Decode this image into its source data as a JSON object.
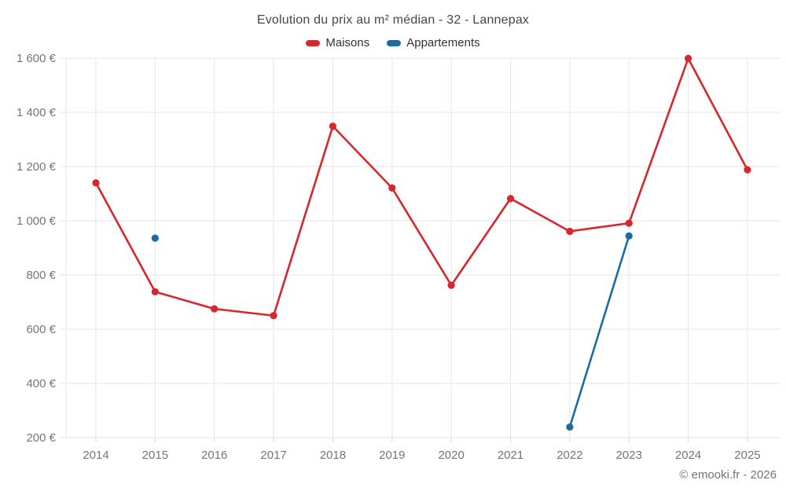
{
  "header": {
    "title": "Evolution du prix au m² médian - 32 - Lannepax"
  },
  "legend": {
    "items": [
      {
        "label": "Maisons",
        "color": "#d8262d"
      },
      {
        "label": "Appartements",
        "color": "#1a6da1"
      }
    ]
  },
  "footer": {
    "credit": "© emooki.fr - 2026"
  },
  "colors": {
    "gridline": "#e6e6e6",
    "tick": "#d8d8d8",
    "axis_label": "#757575",
    "title_text": "#464646",
    "maisons": "#d8262d",
    "appartements": "#1a6da1"
  },
  "chart_data": {
    "type": "line",
    "title": "Evolution du prix au m² médian - 32 - Lannepax",
    "xlabel": "",
    "ylabel": "",
    "categories": [
      "2014",
      "2015",
      "2016",
      "2017",
      "2018",
      "2019",
      "2020",
      "2021",
      "2022",
      "2023",
      "2024",
      "2025"
    ],
    "series": [
      {
        "name": "Maisons",
        "color": "#d8262d",
        "values": [
          1140,
          738,
          675,
          650,
          1349,
          1121,
          762,
          1082,
          961,
          991,
          1599,
          1188
        ]
      },
      {
        "name": "Appartements",
        "color": "#1a6da1",
        "values": [
          null,
          936,
          null,
          null,
          null,
          null,
          null,
          null,
          239,
          944,
          null,
          null
        ]
      }
    ],
    "ylim": [
      200,
      1600
    ],
    "y_ticks": [
      200,
      400,
      600,
      800,
      1000,
      1200,
      1400,
      1600
    ],
    "y_tick_labels": [
      "200 €",
      "400 €",
      "600 €",
      "800 €",
      "1 000 €",
      "1 200 €",
      "1 400 €",
      "1 600 €"
    ],
    "grid": true,
    "legend_position": "top"
  }
}
